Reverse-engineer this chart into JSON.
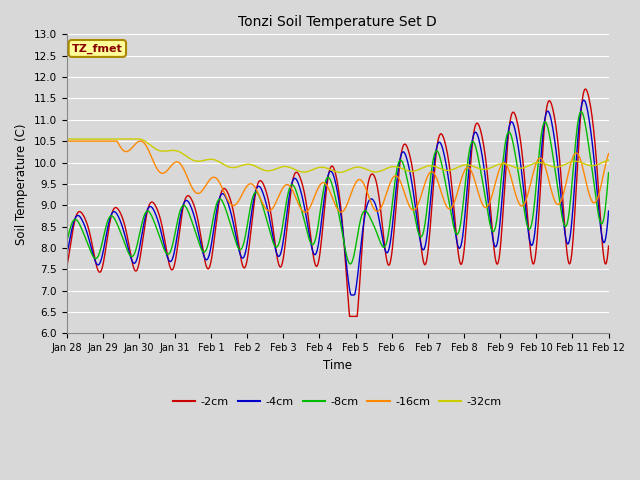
{
  "title": "Tonzi Soil Temperature Set D",
  "xlabel": "Time",
  "ylabel": "Soil Temperature (C)",
  "ylim": [
    6.0,
    13.0
  ],
  "yticks": [
    6.0,
    6.5,
    7.0,
    7.5,
    8.0,
    8.5,
    9.0,
    9.5,
    10.0,
    10.5,
    11.0,
    11.5,
    12.0,
    12.5,
    13.0
  ],
  "colors": {
    "-2cm": "#cc0000",
    "-4cm": "#0000cc",
    "-8cm": "#00bb00",
    "-16cm": "#ff8800",
    "-32cm": "#cccc00"
  },
  "legend_label": "TZ_fmet",
  "legend_box_color": "#ffff99",
  "legend_box_border": "#aa8800",
  "plot_bg_color": "#d8d8d8",
  "fig_bg_color": "#d8d8d8",
  "n_points": 721,
  "xtick_positions": [
    0,
    1,
    2,
    3,
    4,
    5,
    6,
    7,
    8,
    9,
    10,
    11,
    12,
    13,
    14,
    15
  ],
  "xtick_labels": [
    "Jan 28",
    "Jan 29",
    "Jan 30",
    "Jan 31",
    "Feb 1",
    "Feb 2",
    "Feb 3",
    "Feb 4",
    "Feb 5",
    "Feb 6",
    "Feb 7",
    "Feb 8",
    "Feb 9",
    "Feb 10",
    "Feb 11",
    "Feb 12"
  ]
}
